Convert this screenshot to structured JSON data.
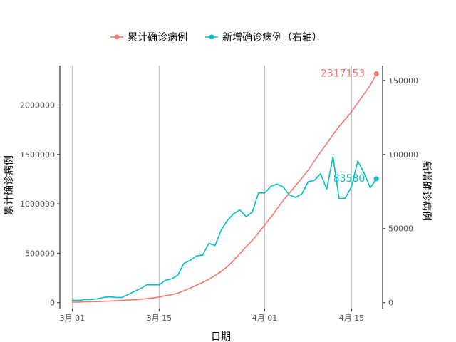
{
  "chart_data": {
    "type": "line",
    "title": "",
    "xlabel": "日期",
    "ylabel_left": "累计确诊病例",
    "ylabel_right": "新增确诊病例",
    "x_tick_labels": [
      "3月 01",
      "3月 15",
      "4月 01",
      "4月 15"
    ],
    "x_tick_days": [
      0,
      14,
      31,
      45
    ],
    "xlim_days": [
      -2,
      50
    ],
    "left_ylim": [
      -60000,
      2400000
    ],
    "left_ticks": [
      0,
      500000,
      1000000,
      1500000,
      2000000
    ],
    "right_ylim": [
      -4000,
      160000
    ],
    "right_ticks": [
      0,
      50000,
      100000,
      150000
    ],
    "grid": "vertical-major",
    "legend_position": "top",
    "legend": [
      {
        "name": "累计确诊病例",
        "color": "#F8766D",
        "marker": "8"
      },
      {
        "name": "新增确诊病例（右轴）",
        "color": "#00BFC4",
        "marker": "8"
      }
    ],
    "series": [
      {
        "name": "累计确诊病例",
        "axis": "left",
        "color": "#F8766D",
        "x": [
          "3月 01",
          "3月 02",
          "3月 03",
          "3月 04",
          "3月 05",
          "3月 06",
          "3月 07",
          "3月 08",
          "3月 09",
          "3月 10",
          "3月 11",
          "3月 12",
          "3月 13",
          "3月 14",
          "3月 15",
          "3月 16",
          "3月 17",
          "3月 18",
          "3月 19",
          "3月 20",
          "3月 21",
          "3月 22",
          "3月 23",
          "3月 24",
          "3月 25",
          "3月 26",
          "3月 27",
          "3月 28",
          "3月 29",
          "3月 30",
          "3月 31",
          "4月 01",
          "4月 02",
          "4月 03",
          "4月 04",
          "4月 05",
          "4月 06",
          "4月 07",
          "4月 08",
          "4月 09",
          "4月 10",
          "4月 11",
          "4月 12",
          "4月 13",
          "4月 14",
          "4月 15",
          "4月 16",
          "4月 17",
          "4月 18",
          "4月 19"
        ],
        "values": [
          5000,
          6000,
          7500,
          9000,
          11000,
          13500,
          16000,
          19000,
          22000,
          25500,
          29000,
          34000,
          40000,
          47000,
          57000,
          69000,
          80000,
          96000,
          120000,
          148000,
          175000,
          204000,
          235000,
          274000,
          316000,
          365000,
          426000,
          495000,
          565000,
          630000,
          706000,
          785000,
          865000,
          950000,
          1035000,
          1110000,
          1185000,
          1262000,
          1340000,
          1432000,
          1525000,
          1610000,
          1700000,
          1785000,
          1857000,
          1931000,
          2025000,
          2110000,
          2200000,
          2317153
        ]
      },
      {
        "name": "新增确诊病例（右轴）",
        "axis": "right",
        "color": "#00BFC4",
        "x": [
          "3月 01",
          "3月 02",
          "3月 03",
          "3月 04",
          "3月 05",
          "3月 06",
          "3月 07",
          "3月 08",
          "3月 09",
          "3月 10",
          "3月 11",
          "3月 12",
          "3月 13",
          "3月 14",
          "3月 15",
          "3月 16",
          "3月 17",
          "3月 18",
          "3月 19",
          "3月 20",
          "3月 21",
          "3月 22",
          "3月 23",
          "3月 24",
          "3月 25",
          "3月 26",
          "3月 27",
          "3月 28",
          "3月 29",
          "3月 30",
          "3月 31",
          "4月 01",
          "4月 02",
          "4月 03",
          "4月 04",
          "4月 05",
          "4月 06",
          "4月 07",
          "4月 08",
          "4月 09",
          "4月 10",
          "4月 11",
          "4月 12",
          "4月 13",
          "4月 14",
          "4月 15",
          "4月 16",
          "4月 17",
          "4月 18",
          "4月 19"
        ],
        "values": [
          1500,
          1500,
          2000,
          2000,
          2500,
          3500,
          4000,
          3500,
          3500,
          5500,
          7500,
          9500,
          12000,
          12000,
          12000,
          15000,
          16000,
          18500,
          26500,
          28500,
          31500,
          32000,
          40000,
          38500,
          49000,
          55500,
          60000,
          62500,
          58000,
          61000,
          74000,
          74000,
          78500,
          80000,
          78000,
          72500,
          71000,
          73500,
          81500,
          82500,
          87000,
          76500,
          98500,
          70000,
          70500,
          78500,
          95500,
          87500,
          77500,
          83580
        ]
      }
    ],
    "end_labels": [
      {
        "series": "累计确诊病例",
        "text": "2317153"
      },
      {
        "series": "新增确诊病例（右轴）",
        "text": "83580"
      }
    ]
  }
}
